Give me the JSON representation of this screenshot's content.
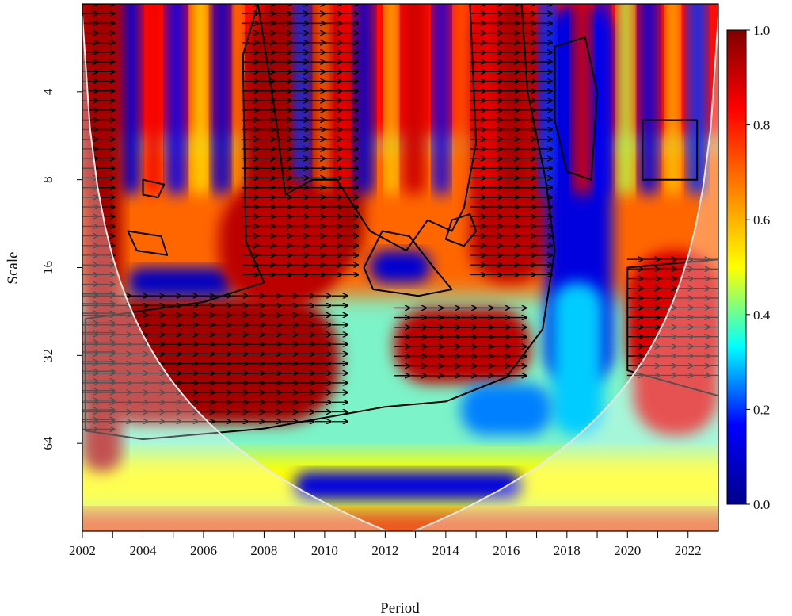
{
  "chart_data": {
    "type": "heatmap",
    "xlabel": "Period",
    "ylabel": "Scale",
    "xlim": [
      2002,
      2023
    ],
    "x_ticks": [
      2002,
      2003,
      2004,
      2005,
      2006,
      2007,
      2008,
      2009,
      2010,
      2011,
      2012,
      2013,
      2014,
      2015,
      2016,
      2017,
      2018,
      2019,
      2020,
      2021,
      2022
    ],
    "x_tick_labels": [
      "2002",
      "2004",
      "2006",
      "2008",
      "2010",
      "2012",
      "2014",
      "2016",
      "2018",
      "2020",
      "2022"
    ],
    "y_scale": "log2",
    "ylim": [
      2,
      128
    ],
    "y_ticks": [
      4,
      8,
      16,
      32,
      64
    ],
    "y_tick_labels": [
      "4",
      "8",
      "16",
      "32",
      "64"
    ],
    "colorbar": {
      "min": 0.0,
      "max": 1.0,
      "ticks": [
        0.0,
        0.2,
        0.4,
        0.6,
        0.8,
        1.0
      ],
      "tick_labels": [
        "0.0",
        "0.2",
        "0.4",
        "0.6",
        "0.8",
        "1.0"
      ],
      "colors": [
        "#00008b",
        "#0000ff",
        "#00ffff",
        "#ffff00",
        "#ff7f00",
        "#ff0000",
        "#7f0000"
      ]
    },
    "colormap": "jet",
    "cone_of_influence": true,
    "significance_contours": true,
    "phase_arrows": true,
    "high_coherence_regions": [
      {
        "x": [
          2002,
          2010.5
        ],
        "scale": [
          20,
          55
        ],
        "value": 0.95,
        "phase": "right"
      },
      {
        "x": [
          2007.3,
          2011.3
        ],
        "scale": [
          2,
          18
        ],
        "value": 0.95,
        "phase": "right"
      },
      {
        "x": [
          2012.3,
          2016.8
        ],
        "scale": [
          22,
          40
        ],
        "value": 0.92,
        "phase": "right"
      },
      {
        "x": [
          2014.8,
          2017.4
        ],
        "scale": [
          2,
          18
        ],
        "value": 0.92,
        "phase": "right"
      },
      {
        "x": [
          2020,
          2023
        ],
        "scale": [
          15,
          40
        ],
        "value": 0.9,
        "phase": "right"
      }
    ],
    "low_coherence_regions": [
      {
        "x": [
          2003.5,
          2007
        ],
        "scale": [
          16,
          20
        ],
        "value": 0.08
      },
      {
        "x": [
          2011.5,
          2013.5
        ],
        "scale": [
          14,
          18
        ],
        "value": 0.1
      },
      {
        "x": [
          2009,
          2016.5
        ],
        "scale": [
          80,
          100
        ],
        "value": 0.12
      },
      {
        "x": [
          2017.3,
          2019.5
        ],
        "scale": [
          2,
          40
        ],
        "value": 0.12
      }
    ]
  }
}
